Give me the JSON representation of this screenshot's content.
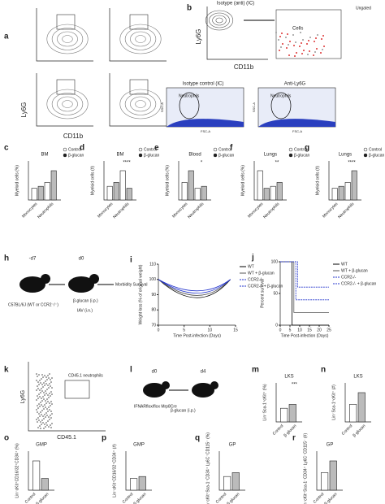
{
  "panels": {
    "a": {
      "letter": "a",
      "y_label": "Ly6G",
      "x_label": "CD11b"
    },
    "b": {
      "letter": "b",
      "title": "Isotype (anti) (IC)",
      "y_label": "Ly6G",
      "x_label": "CD11b",
      "gate": "Cells",
      "legend": "Ungated",
      "left_title": "Isotype control (IC)",
      "right_title": "Anti-Ly6G",
      "gate_left": "Neutrophils",
      "gate_right": "Neutrophils",
      "scatter_y": "SSC-A",
      "scatter_x": "FSC-A"
    },
    "h": {
      "letter": "h",
      "day_1": "-d7",
      "day_2": "d0",
      "mouse": "C57BL/6J (WT or CCR2⁻/⁻)",
      "treatment": "β-glucan (i.p.)",
      "infection": "IAV (i.n.)",
      "readout": "Morbidity Survival"
    },
    "i": {
      "letter": "i",
      "y_label": "Weight loss (% of original weight)",
      "x_label": "Time Post-infection (Days)",
      "yticks": [
        70,
        80,
        90,
        100,
        110
      ],
      "xticks": [
        0,
        5,
        10,
        15
      ],
      "legend": [
        "WT",
        "WT + β-glucan",
        "CCR2-/-",
        "CCR2-/- + β-glucan"
      ]
    },
    "j": {
      "letter": "j",
      "y_label": "Percent survival",
      "x_label": "Time Post-infection (Days)",
      "yticks": [
        0,
        50,
        100
      ],
      "xticks": [
        0,
        5,
        10,
        15,
        20,
        25
      ],
      "legend": [
        "WT",
        "WT + β-glucan",
        "CCR2-/-",
        "CCR2-/- + β-glucan"
      ]
    },
    "k": {
      "letter": "k",
      "y_label": "Ly6G",
      "x_label": "CD45.1",
      "gate": "CD45.1 neutrophils"
    },
    "l": {
      "letter": "l",
      "day_1": "d0",
      "day_2": "d4",
      "mouse": "IFNARflox/flox Mrp8Cre",
      "treatment": "β-glucan (i.p.)"
    }
  },
  "bar_panels": [
    {
      "letter": "c",
      "title": "BM",
      "y_label": "Myeloid cells (%)",
      "categories": [
        "Monocytes",
        "Neutrophils"
      ],
      "legend": [
        "Control",
        "β-glucan"
      ]
    },
    {
      "letter": "d",
      "title": "BM",
      "y_label": "Myeloid cells (#)",
      "categories": [
        "Monocytes",
        "Neutrophils"
      ],
      "legend": [
        "Control",
        "β-glucan"
      ],
      "significance": "****"
    },
    {
      "letter": "e",
      "title": "Blood",
      "y_label": "Myeloid cells (%)",
      "categories": [
        "Monocytes",
        "Neutrophils"
      ],
      "legend": [
        "Control",
        "β-glucan"
      ],
      "significance": "*"
    },
    {
      "letter": "f",
      "title": "Lungs",
      "y_label": "Myeloid cells (%)",
      "categories": [
        "Monocytes",
        "Neutrophils"
      ],
      "legend": [
        "Control",
        "β-glucan"
      ],
      "significance": "**"
    },
    {
      "letter": "g",
      "title": "Lungs",
      "y_label": "Myeloid cells (#)",
      "categories": [
        "Monocytes",
        "Neutrophils"
      ],
      "legend": [
        "Control",
        "β-glucan"
      ],
      "significance": "****"
    },
    {
      "letter": "m",
      "title": "LKS",
      "y_label": "Lin⁻Sca-1⁺cKit⁺ (%)",
      "categories": [
        "Control",
        "β-glucan"
      ],
      "significance": "***"
    },
    {
      "letter": "n",
      "title": "LKS",
      "y_label": "Lin⁻Sca-1⁺cKit⁺ (#)",
      "categories": [
        "Control",
        "β-glucan"
      ]
    },
    {
      "letter": "o",
      "title": "GMP",
      "y_label": "Lin⁻cKit⁺CD16/32⁺CD34⁺ (%)",
      "categories": [
        "Control",
        "β-glucan"
      ]
    },
    {
      "letter": "p",
      "title": "GMP",
      "y_label": "Lin⁻cKit⁺CD16/32⁺CD34⁺ (#)",
      "categories": [
        "Control",
        "β-glucan"
      ]
    },
    {
      "letter": "q",
      "title": "GP",
      "y_label": "Lin⁻cKit⁺Sca-1⁻CD34⁺ Ly6C⁻CD115⁻ (%)",
      "categories": [
        "Control",
        "β-glucan"
      ]
    },
    {
      "letter": "r",
      "title": "GP",
      "y_label": "Lin⁻cKit⁺Sca-1⁻CD34⁺ Ly6C⁻CD115⁻ (#)",
      "categories": [
        "Control",
        "β-glucan"
      ]
    }
  ]
}
